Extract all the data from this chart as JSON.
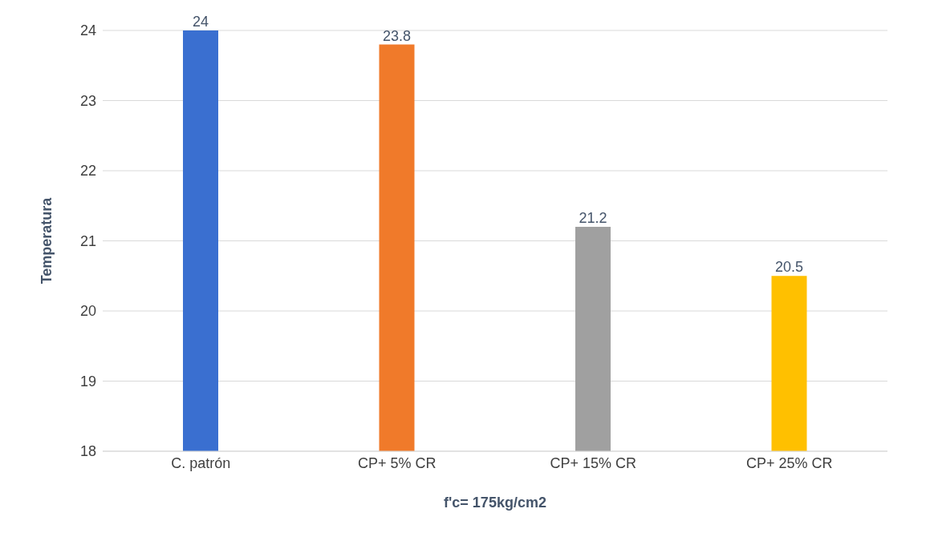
{
  "chart_data": {
    "type": "bar",
    "xlabel": "f'c= 175kg/cm2",
    "ylabel": "Temperatura",
    "categories": [
      "C. patrón",
      "CP+ 5% CR",
      "CP+ 15% CR",
      "CP+ 25% CR"
    ],
    "values": [
      24,
      23.8,
      21.2,
      20.5
    ],
    "colors": [
      "#3a6fd0",
      "#f07a2a",
      "#a0a0a0",
      "#ffc000"
    ],
    "ylim": [
      18,
      24
    ],
    "yticks": [
      18,
      19,
      20,
      21,
      22,
      23,
      24
    ],
    "grid": "y",
    "data_labels": true
  }
}
